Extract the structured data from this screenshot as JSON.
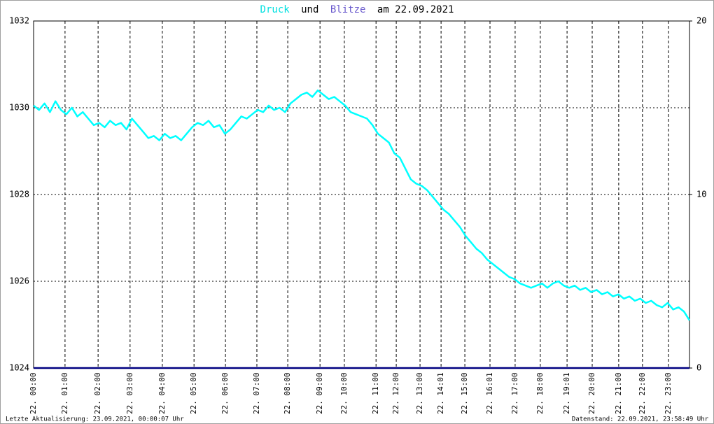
{
  "chart_data": {
    "type": "line",
    "title_parts": [
      "und",
      "am 22.09.2021"
    ],
    "series": [
      {
        "name": "Druck",
        "color": "#00ffff",
        "title_color": "#00e0e0",
        "axis": "y",
        "x": [
          0,
          0.2,
          0.4,
          0.6,
          0.8,
          1,
          1.2,
          1.4,
          1.6,
          1.8,
          2,
          2.2,
          2.4,
          2.6,
          2.8,
          3,
          3.2,
          3.4,
          3.6,
          3.8,
          4,
          4.2,
          4.4,
          4.6,
          4.8,
          5,
          5.2,
          5.4,
          5.6,
          5.8,
          6,
          6.2,
          6.4,
          6.6,
          6.8,
          7,
          7.2,
          7.4,
          7.6,
          7.8,
          8,
          8.2,
          8.4,
          8.6,
          8.8,
          9,
          9.2,
          9.4,
          9.6,
          9.8,
          10,
          10.2,
          10.4,
          10.6,
          10.8,
          11,
          11.2,
          11.4,
          11.6,
          11.8,
          12,
          12.2,
          12.4,
          12.6,
          12.8,
          13,
          13.2,
          13.4,
          13.6,
          13.8,
          14,
          14.2,
          14.4,
          14.6,
          14.8,
          15,
          15.2,
          15.4,
          15.6,
          15.8,
          16,
          16.2,
          16.4,
          16.6,
          16.8,
          17,
          17.2,
          17.4,
          17.6,
          17.8,
          18,
          18.2,
          18.4,
          18.6,
          18.8,
          19,
          19.2,
          19.4,
          19.6,
          19.8,
          20,
          20.2,
          20.4,
          20.6,
          20.8,
          21,
          21.2,
          21.4,
          21.6,
          21.8,
          22,
          22.2,
          22.4,
          22.6,
          22.8,
          23,
          23.2,
          23.4,
          23.6,
          23.8,
          24
        ],
        "values": [
          1030.05,
          1029.95,
          1030.1,
          1029.9,
          1030.15,
          1029.95,
          1029.85,
          1030.0,
          1029.8,
          1029.9,
          1029.75,
          1029.6,
          1029.65,
          1029.55,
          1029.7,
          1029.6,
          1029.65,
          1029.5,
          1029.75,
          1029.6,
          1029.45,
          1029.3,
          1029.35,
          1029.25,
          1029.4,
          1029.3,
          1029.35,
          1029.25,
          1029.4,
          1029.55,
          1029.65,
          1029.6,
          1029.7,
          1029.55,
          1029.6,
          1029.4,
          1029.5,
          1029.65,
          1029.8,
          1029.75,
          1029.85,
          1029.95,
          1029.9,
          1030.05,
          1029.95,
          1030.0,
          1029.9,
          1030.1,
          1030.2,
          1030.3,
          1030.35,
          1030.25,
          1030.4,
          1030.3,
          1030.2,
          1030.25,
          1030.15,
          1030.05,
          1029.9,
          1029.85,
          1029.8,
          1029.75,
          1029.6,
          1029.4,
          1029.3,
          1029.2,
          1028.95,
          1028.85,
          1028.6,
          1028.35,
          1028.25,
          1028.2,
          1028.1,
          1027.95,
          1027.8,
          1027.65,
          1027.55,
          1027.4,
          1027.25,
          1027.05,
          1026.9,
          1026.75,
          1026.65,
          1026.5,
          1026.4,
          1026.3,
          1026.2,
          1026.1,
          1026.05,
          1025.95,
          1025.9,
          1025.85,
          1025.9,
          1025.95,
          1025.85,
          1025.95,
          1026.0,
          1025.9,
          1025.85,
          1025.9,
          1025.8,
          1025.85,
          1025.75,
          1025.8,
          1025.7,
          1025.75,
          1025.65,
          1025.7,
          1025.6,
          1025.65,
          1025.55,
          1025.6,
          1025.5,
          1025.55,
          1025.45,
          1025.4,
          1025.5,
          1025.35,
          1025.4,
          1025.3,
          1025.1
        ]
      },
      {
        "name": "Blitze",
        "color": "#000080",
        "title_color": "#6a5acd",
        "axis": "y2",
        "x": [
          0,
          24
        ],
        "values": [
          0,
          0
        ]
      }
    ],
    "xlim": [
      0,
      24
    ],
    "xticks": [
      {
        "value": 0,
        "label": "22. 00:00"
      },
      {
        "value": 1.15,
        "label": "22. 01:00"
      },
      {
        "value": 2.36,
        "label": "22. 02:00"
      },
      {
        "value": 3.53,
        "label": "22. 03:00"
      },
      {
        "value": 4.71,
        "label": "22. 04:00"
      },
      {
        "value": 5.87,
        "label": "22. 05:00"
      },
      {
        "value": 7.02,
        "label": "22. 06:00"
      },
      {
        "value": 8.17,
        "label": "22. 07:00"
      },
      {
        "value": 9.3,
        "label": "22. 08:00"
      },
      {
        "value": 10.48,
        "label": "22. 09:00"
      },
      {
        "value": 11.37,
        "label": "22. 10:00"
      },
      {
        "value": 12.53,
        "label": "22. 11:00"
      },
      {
        "value": 13.27,
        "label": "22. 12:00"
      },
      {
        "value": 14.14,
        "label": "22. 13:00"
      },
      {
        "value": 14.91,
        "label": "22. 14:01"
      },
      {
        "value": 15.78,
        "label": "22. 15:00"
      },
      {
        "value": 16.7,
        "label": "22. 16:01"
      },
      {
        "value": 17.62,
        "label": "22. 17:00"
      },
      {
        "value": 18.54,
        "label": "22. 18:00"
      },
      {
        "value": 19.52,
        "label": "22. 19:01"
      },
      {
        "value": 20.44,
        "label": "22. 20:00"
      },
      {
        "value": 21.41,
        "label": "22. 21:00"
      },
      {
        "value": 22.28,
        "label": "22. 22:00"
      },
      {
        "value": 23.23,
        "label": "22. 23:00"
      }
    ],
    "ylim": [
      1024,
      1032
    ],
    "yticks": [
      1024,
      1026,
      1028,
      1030,
      1032
    ],
    "y2lim": [
      0,
      20
    ],
    "y2ticks": [
      0,
      10,
      20
    ],
    "grid": true,
    "footer_left": "Letzte Aktualisierung: 23.09.2021, 00:00:07 Uhr",
    "footer_right": "Datenstand: 22.09.2021, 23:58:49 Uhr"
  }
}
